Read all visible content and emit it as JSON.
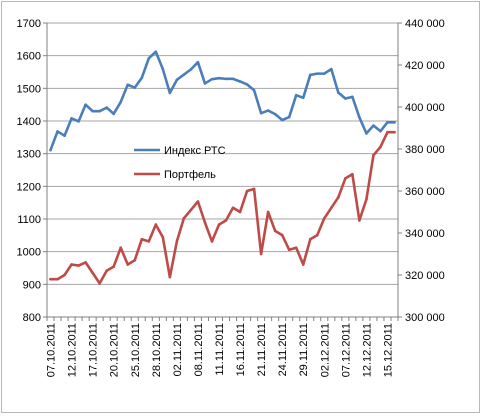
{
  "chart_data": {
    "type": "line",
    "title": "",
    "xlabel": "",
    "ylabel": "",
    "ylim": [
      800,
      1700
    ],
    "y_ticks": [
      "800",
      "900",
      "1000",
      "1100",
      "1200",
      "1300",
      "1400",
      "1500",
      "1600",
      "1700"
    ],
    "y2lim": [
      300000,
      440000
    ],
    "y2_ticks": [
      "300 000",
      "320 000",
      "340 000",
      "360 000",
      "380 000",
      "400 000",
      "420 000",
      "440 000"
    ],
    "x_tick_labels": [
      "07.10.2011",
      "12.10.2011",
      "17.10.2011",
      "20.10.2011",
      "25.10.2011",
      "28.10.2011",
      "02.11.2011",
      "08.11.2011",
      "11.11.2011",
      "16.11.2011",
      "21.11.2011",
      "24.11.2011",
      "29.11.2011",
      "02.12.2011",
      "07.12.2011",
      "12.12.2011",
      "15.12.2011"
    ],
    "x_tick_every": 3,
    "legend_placement": "center",
    "series": [
      {
        "name": "Индекс РТС",
        "axis": "left",
        "color": "#4a7ebb",
        "values": [
          1311,
          1368,
          1355,
          1408,
          1399,
          1450,
          1430,
          1430,
          1441,
          1422,
          1458,
          1511,
          1502,
          1532,
          1592,
          1612,
          1559,
          1486,
          1526,
          1542,
          1558,
          1580,
          1515,
          1528,
          1531,
          1529,
          1529,
          1521,
          1512,
          1494,
          1424,
          1432,
          1421,
          1403,
          1412,
          1479,
          1471,
          1541,
          1545,
          1545,
          1559,
          1487,
          1469,
          1474,
          1411,
          1362,
          1386,
          1369,
          1396,
          1396
        ]
      },
      {
        "name": "Портфель",
        "axis": "right",
        "color": "#be4b48",
        "values": [
          318000,
          318000,
          320000,
          325000,
          324500,
          326000,
          321000,
          316000,
          322000,
          324000,
          333000,
          325000,
          327000,
          337000,
          336000,
          344000,
          338000,
          319000,
          336000,
          347000,
          351000,
          355000,
          345000,
          336000,
          344000,
          346000,
          352000,
          350000,
          360000,
          361000,
          330000,
          350000,
          341000,
          339000,
          332000,
          333000,
          325000,
          337000,
          339000,
          347000,
          352000,
          357000,
          366000,
          368000,
          346000,
          356000,
          377000,
          381000,
          388000,
          388000
        ]
      }
    ]
  }
}
